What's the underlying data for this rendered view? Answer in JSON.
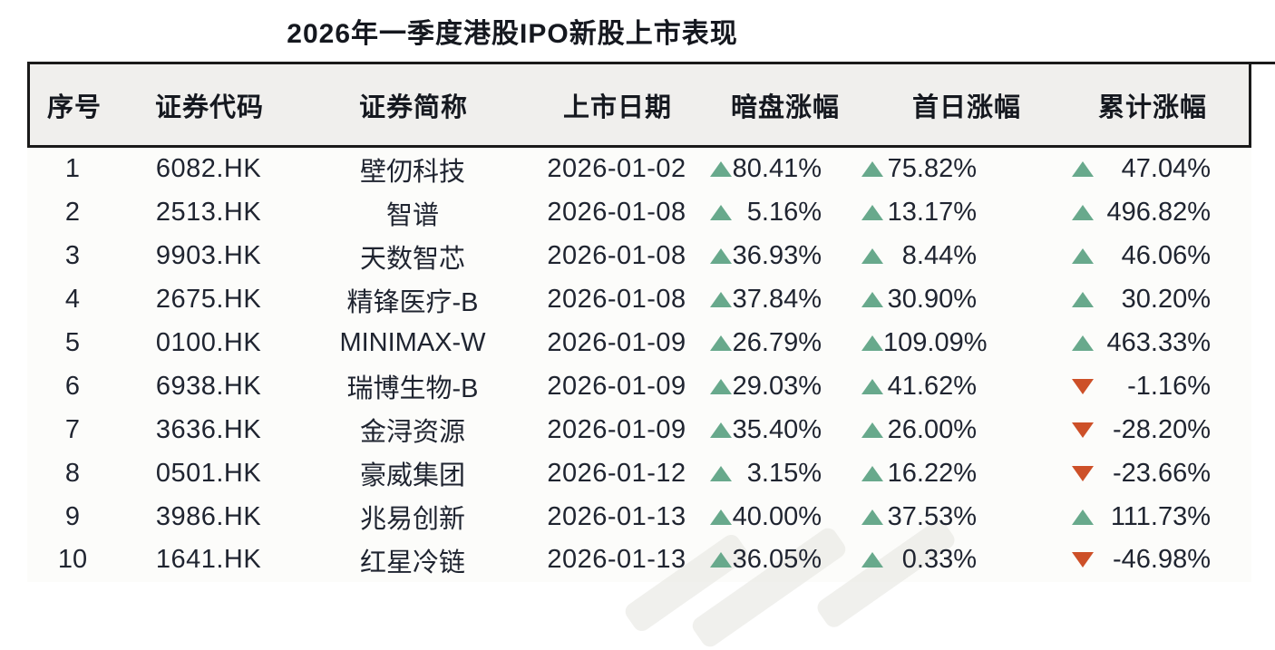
{
  "title": "2026年一季度港股IPO新股上市表现",
  "colors": {
    "up_green": "#68a98c",
    "down_red": "#cd5028",
    "header_bg": "#f0efed",
    "rule_black": "#1a1a1a",
    "text_dark": "#1f2430"
  },
  "chart_data": {
    "type": "table",
    "title": "2026年一季度港股IPO新股上市表现",
    "columns": [
      "序号",
      "证券代码",
      "证券简称",
      "上市日期",
      "暗盘涨幅",
      "首日涨幅",
      "累计涨幅"
    ],
    "rows": [
      {
        "no": "1",
        "code": "6082.HK",
        "name": "壁仞科技",
        "date": "2026-01-02",
        "dark": {
          "value": "80.41%",
          "dir": "up"
        },
        "first": {
          "value": "75.82%",
          "dir": "up"
        },
        "cum": {
          "value": "47.04%",
          "dir": "up"
        }
      },
      {
        "no": "2",
        "code": "2513.HK",
        "name": "智谱",
        "date": "2026-01-08",
        "dark": {
          "value": "5.16%",
          "dir": "up"
        },
        "first": {
          "value": "13.17%",
          "dir": "up"
        },
        "cum": {
          "value": "496.82%",
          "dir": "up"
        }
      },
      {
        "no": "3",
        "code": "9903.HK",
        "name": "天数智芯",
        "date": "2026-01-08",
        "dark": {
          "value": "36.93%",
          "dir": "up"
        },
        "first": {
          "value": "8.44%",
          "dir": "up"
        },
        "cum": {
          "value": "46.06%",
          "dir": "up"
        }
      },
      {
        "no": "4",
        "code": "2675.HK",
        "name": "精锋医疗-B",
        "date": "2026-01-08",
        "dark": {
          "value": "37.84%",
          "dir": "up"
        },
        "first": {
          "value": "30.90%",
          "dir": "up"
        },
        "cum": {
          "value": "30.20%",
          "dir": "up"
        }
      },
      {
        "no": "5",
        "code": "0100.HK",
        "name": "MINIMAX-W",
        "date": "2026-01-09",
        "dark": {
          "value": "26.79%",
          "dir": "up"
        },
        "first": {
          "value": "109.09%",
          "dir": "up"
        },
        "cum": {
          "value": "463.33%",
          "dir": "up"
        }
      },
      {
        "no": "6",
        "code": "6938.HK",
        "name": "瑞博生物-B",
        "date": "2026-01-09",
        "dark": {
          "value": "29.03%",
          "dir": "up"
        },
        "first": {
          "value": "41.62%",
          "dir": "up"
        },
        "cum": {
          "value": "-1.16%",
          "dir": "down"
        }
      },
      {
        "no": "7",
        "code": "3636.HK",
        "name": "金浔资源",
        "date": "2026-01-09",
        "dark": {
          "value": "35.40%",
          "dir": "up"
        },
        "first": {
          "value": "26.00%",
          "dir": "up"
        },
        "cum": {
          "value": "-28.20%",
          "dir": "down"
        }
      },
      {
        "no": "8",
        "code": "0501.HK",
        "name": "豪威集团",
        "date": "2026-01-12",
        "dark": {
          "value": "3.15%",
          "dir": "up"
        },
        "first": {
          "value": "16.22%",
          "dir": "up"
        },
        "cum": {
          "value": "-23.66%",
          "dir": "down"
        }
      },
      {
        "no": "9",
        "code": "3986.HK",
        "name": "兆易创新",
        "date": "2026-01-13",
        "dark": {
          "value": "40.00%",
          "dir": "up"
        },
        "first": {
          "value": "37.53%",
          "dir": "up"
        },
        "cum": {
          "value": "111.73%",
          "dir": "up"
        }
      },
      {
        "no": "10",
        "code": "1641.HK",
        "name": "红星冷链",
        "date": "2026-01-13",
        "dark": {
          "value": "36.05%",
          "dir": "up"
        },
        "first": {
          "value": "0.33%",
          "dir": "up"
        },
        "cum": {
          "value": "-46.98%",
          "dir": "down"
        }
      }
    ]
  }
}
